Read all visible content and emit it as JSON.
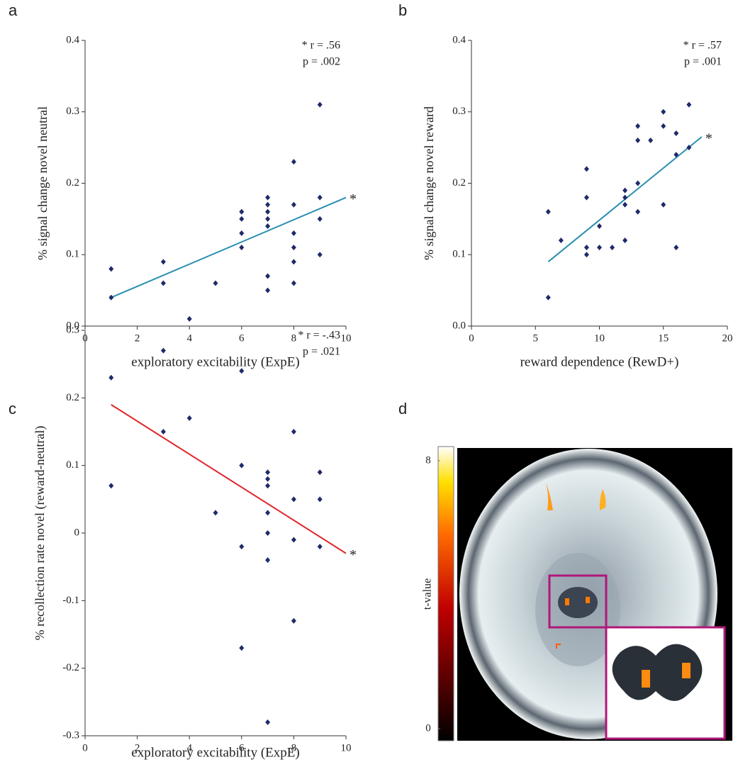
{
  "chart_data": [
    {
      "type": "scatter",
      "panel": "a",
      "xlabel": "exploratory excitability (ExpE)",
      "ylabel": "% signal change novel neutral",
      "xlim": [
        0,
        10
      ],
      "xticks": [
        0,
        2,
        4,
        6,
        8,
        10
      ],
      "ylim": [
        0,
        0.4
      ],
      "yticks": [
        {
          "value": 0,
          "label": "0.0"
        },
        0.1,
        0.2,
        0.3,
        0.4
      ],
      "marker_color": "#1f2a6b",
      "x": [
        1,
        1,
        3,
        3,
        4,
        5,
        6,
        6,
        6,
        6,
        7,
        7,
        7,
        7,
        7,
        7,
        7,
        8,
        8,
        8,
        8,
        8,
        8,
        9,
        9,
        9,
        9
      ],
      "y": [
        0.08,
        0.04,
        0.09,
        0.06,
        0.01,
        0.06,
        0.16,
        0.15,
        0.13,
        0.11,
        0.18,
        0.17,
        0.16,
        0.15,
        0.14,
        0.07,
        0.05,
        0.23,
        0.17,
        0.13,
        0.11,
        0.09,
        0.06,
        0.31,
        0.18,
        0.15,
        0.1
      ],
      "fit": {
        "x": [
          1,
          10
        ],
        "y": [
          0.04,
          0.18
        ],
        "color": "#2a8fb0",
        "label": "*"
      },
      "annotation": [
        "* r = .56",
        "p = .002"
      ]
    },
    {
      "type": "scatter",
      "panel": "b",
      "xlabel": "reward dependence (RewD+)",
      "ylabel": "% signal change novel reward",
      "xlim": [
        0,
        20
      ],
      "xticks": [
        0,
        5,
        10,
        15,
        20
      ],
      "ylim": [
        0,
        0.4
      ],
      "yticks": [
        {
          "value": 0,
          "label": "0.0"
        },
        0.1,
        0.2,
        0.3,
        0.4
      ],
      "marker_color": "#1f2a6b",
      "x": [
        6,
        6,
        7,
        9,
        9,
        9,
        9,
        10,
        10,
        11,
        12,
        12,
        12,
        12,
        13,
        13,
        13,
        13,
        14,
        15,
        15,
        15,
        16,
        16,
        16,
        17,
        17
      ],
      "y": [
        0.16,
        0.04,
        0.12,
        0.22,
        0.18,
        0.11,
        0.1,
        0.14,
        0.11,
        0.11,
        0.19,
        0.18,
        0.17,
        0.12,
        0.28,
        0.26,
        0.2,
        0.16,
        0.26,
        0.3,
        0.28,
        0.17,
        0.27,
        0.24,
        0.11,
        0.31,
        0.25
      ],
      "fit": {
        "x": [
          6,
          18
        ],
        "y": [
          0.09,
          0.265
        ],
        "color": "#2a8fb0",
        "label": "*"
      },
      "annotation": [
        "* r = .57",
        "p = .001"
      ]
    },
    {
      "type": "scatter",
      "panel": "c",
      "xlabel": "exploratory excitability (ExpE)",
      "ylabel": "% recollection rate novel (reward-neutral)",
      "xlim": [
        0,
        10
      ],
      "xticks": [
        0,
        2,
        4,
        6,
        8,
        10
      ],
      "ylim": [
        -0.3,
        0.3
      ],
      "yticks": [
        -0.3,
        -0.2,
        -0.1,
        0,
        0.1,
        0.2,
        0.3
      ],
      "marker_color": "#1f2a6b",
      "x": [
        1,
        1,
        3,
        3,
        4,
        5,
        6,
        6,
        6,
        6,
        7,
        7,
        7,
        7,
        7,
        7,
        7,
        8,
        8,
        8,
        8,
        9,
        9,
        9
      ],
      "y": [
        0.23,
        0.07,
        0.27,
        0.15,
        0.17,
        0.03,
        0.24,
        0.1,
        -0.02,
        -0.17,
        0.09,
        0.08,
        0.07,
        0.03,
        0.0,
        -0.04,
        -0.28,
        0.15,
        0.05,
        -0.01,
        -0.13,
        0.09,
        0.05,
        -0.02
      ],
      "fit": {
        "x": [
          1,
          10
        ],
        "y": [
          0.19,
          -0.03
        ],
        "color": "#e0262b",
        "label": "*"
      },
      "annotation": [
        "* r = -.43",
        "p = .021"
      ]
    },
    {
      "type": "image",
      "panel": "d",
      "ylabel": "t-value",
      "ylim": [
        0,
        8
      ],
      "yticks": [
        0,
        8
      ]
    }
  ]
}
